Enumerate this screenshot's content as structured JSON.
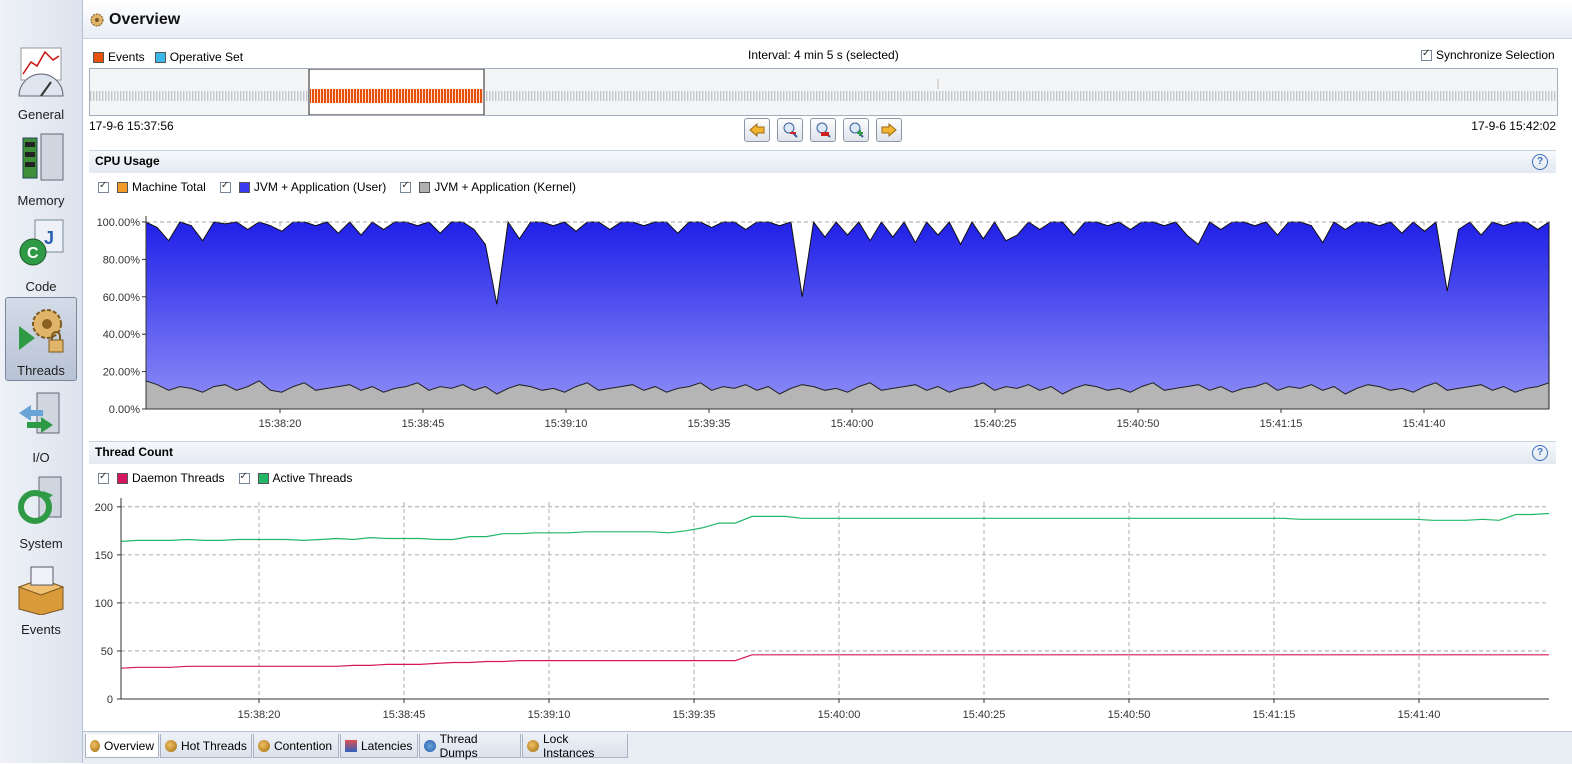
{
  "sidebar": {
    "items": [
      {
        "label": "General",
        "icon": "general-gauge-icon"
      },
      {
        "label": "Memory",
        "icon": "memory-chip-icon"
      },
      {
        "label": "Code",
        "icon": "code-icon"
      },
      {
        "label": "Threads",
        "icon": "threads-gears-icon",
        "active": true
      },
      {
        "label": "I/O",
        "icon": "io-icon"
      },
      {
        "label": "System",
        "icon": "system-icon"
      },
      {
        "label": "Events",
        "icon": "events-box-icon"
      }
    ]
  },
  "header": {
    "title": "Overview"
  },
  "timeline": {
    "legend": [
      {
        "label": "Events",
        "color": "#e8520c"
      },
      {
        "label": "Operative Set",
        "color": "#3bb7e8"
      }
    ],
    "interval_text": "Interval: 4 min 5 s (selected)",
    "sync_label": "Synchronize Selection",
    "start_time": "17-9-6 15:37:56",
    "end_time": "17-9-6 15:42:02",
    "buttons": [
      "back-arrow-icon",
      "zoom-out-icon",
      "zoom-selection-icon",
      "zoom-in-icon",
      "forward-arrow-icon"
    ]
  },
  "cpu": {
    "title": "CPU Usage",
    "legend": [
      {
        "label": "Machine Total",
        "color": "#f39a2b"
      },
      {
        "label": "JVM + Application (User)",
        "color": "#3a3af0"
      },
      {
        "label": "JVM + Application (Kernel)",
        "color": "#b0b0b0"
      }
    ],
    "y_ticks": [
      "0.00%",
      "20.00%",
      "40.00%",
      "60.00%",
      "80.00%",
      "100.00%"
    ],
    "x_ticks": [
      "15:38:20",
      "15:38:45",
      "15:39:10",
      "15:39:35",
      "15:40:00",
      "15:40:25",
      "15:40:50",
      "15:41:15",
      "15:41:40"
    ]
  },
  "threads": {
    "title": "Thread Count",
    "legend": [
      {
        "label": "Daemon Threads",
        "color": "#d6165e"
      },
      {
        "label": "Active Threads",
        "color": "#22b866"
      }
    ],
    "y_ticks": [
      "0",
      "50",
      "100",
      "150",
      "200"
    ],
    "x_ticks": [
      "15:38:20",
      "15:38:45",
      "15:39:10",
      "15:39:35",
      "15:40:00",
      "15:40:25",
      "15:40:50",
      "15:41:15",
      "15:41:40"
    ]
  },
  "tabs": [
    "Overview",
    "Hot Threads",
    "Contention",
    "Latencies",
    "Thread Dumps",
    "Lock Instances"
  ],
  "chart_data": [
    {
      "type": "area",
      "title": "CPU Usage",
      "ylabel": "",
      "ylim": [
        0,
        100
      ],
      "x_range": [
        "15:37:56",
        "15:42:02"
      ],
      "series": [
        {
          "name": "Machine Total",
          "values": [
            100,
            97,
            88,
            100,
            98,
            86,
            100,
            99,
            100,
            96,
            100,
            98,
            94,
            100,
            100,
            98,
            100,
            93,
            100,
            92,
            100,
            96,
            100,
            100,
            98,
            100,
            94,
            100,
            100,
            96,
            87,
            55,
            100,
            90,
            100,
            100,
            98,
            100,
            95,
            100,
            100,
            96,
            100,
            100,
            98,
            100,
            100,
            94,
            100,
            100,
            97,
            100,
            100,
            96,
            100,
            100,
            98,
            100,
            48,
            100,
            90,
            100,
            92,
            100,
            88,
            100,
            90,
            100,
            87,
            100,
            92,
            100,
            86,
            100,
            90,
            100,
            88,
            92,
            100,
            96,
            100,
            100,
            92,
            100,
            100,
            98,
            100,
            96,
            100,
            100,
            98,
            100,
            92,
            85,
            100,
            96,
            100,
            100,
            98,
            100,
            92,
            100,
            100,
            98,
            88,
            100,
            96,
            100,
            100,
            98,
            100,
            94,
            100,
            95,
            100,
            62,
            95,
            100,
            92,
            100,
            98,
            100,
            100,
            96,
            100
          ]
        },
        {
          "name": "JVM + Application (User)",
          "values": [
            100,
            97,
            90,
            100,
            98,
            90,
            100,
            99,
            100,
            96,
            100,
            98,
            95,
            100,
            100,
            98,
            100,
            94,
            100,
            93,
            100,
            96,
            100,
            100,
            98,
            100,
            94,
            100,
            100,
            96,
            88,
            56,
            100,
            91,
            100,
            100,
            98,
            100,
            95,
            100,
            100,
            96,
            100,
            100,
            98,
            100,
            100,
            94,
            100,
            100,
            97,
            100,
            100,
            96,
            100,
            100,
            98,
            100,
            60,
            100,
            92,
            100,
            93,
            100,
            90,
            100,
            92,
            100,
            89,
            100,
            93,
            100,
            88,
            100,
            91,
            100,
            90,
            93,
            100,
            96,
            100,
            100,
            93,
            100,
            100,
            98,
            100,
            96,
            100,
            100,
            98,
            100,
            93,
            88,
            100,
            96,
            100,
            100,
            98,
            100,
            93,
            100,
            100,
            98,
            89,
            100,
            96,
            100,
            100,
            98,
            100,
            94,
            100,
            95,
            100,
            63,
            96,
            100,
            93,
            100,
            98,
            100,
            100,
            96,
            100
          ]
        },
        {
          "name": "JVM + Application (Kernel)",
          "values": [
            15,
            13,
            10,
            12,
            11,
            9,
            12,
            13,
            10,
            12,
            15,
            10,
            9,
            12,
            14,
            10,
            11,
            12,
            13,
            10,
            12,
            9,
            11,
            12,
            14,
            10,
            12,
            11,
            13,
            10,
            12,
            8,
            11,
            13,
            12,
            10,
            11,
            9,
            12,
            14,
            10,
            11,
            12,
            13,
            10,
            12,
            9,
            11,
            12,
            14,
            10,
            12,
            11,
            13,
            10,
            12,
            8,
            11,
            13,
            12,
            10,
            11,
            9,
            12,
            14,
            10,
            11,
            12,
            13,
            10,
            12,
            9,
            11,
            12,
            14,
            10,
            12,
            11,
            13,
            10,
            12,
            8,
            11,
            13,
            12,
            10,
            11,
            9,
            12,
            14,
            10,
            11,
            12,
            13,
            10,
            12,
            9,
            11,
            12,
            14,
            10,
            12,
            11,
            13,
            10,
            12,
            8,
            11,
            13,
            12,
            10,
            11,
            9,
            12,
            14,
            10,
            11,
            12,
            13,
            10,
            12,
            9,
            11,
            12,
            14
          ]
        }
      ]
    },
    {
      "type": "line",
      "title": "Thread Count",
      "ylabel": "",
      "ylim": [
        0,
        200
      ],
      "x_range": [
        "15:37:56",
        "15:42:02"
      ],
      "series": [
        {
          "name": "Active Threads",
          "values": [
            164,
            165,
            165,
            165,
            166,
            165,
            165,
            166,
            166,
            166,
            166,
            165,
            166,
            167,
            166,
            168,
            167,
            167,
            167,
            166,
            166,
            169,
            169,
            172,
            172,
            173,
            173,
            173,
            174,
            174,
            174,
            174,
            174,
            173,
            175,
            178,
            183,
            183,
            190,
            190,
            190,
            188,
            188,
            188,
            188,
            188,
            188,
            188,
            188,
            188,
            188,
            188,
            188,
            188,
            188,
            188,
            188,
            188,
            188,
            188,
            188,
            188,
            188,
            188,
            188,
            188,
            188,
            188,
            188,
            188,
            188,
            187,
            187,
            187,
            187,
            187,
            187,
            187,
            187,
            186,
            186,
            186,
            187,
            186,
            192,
            192,
            193
          ]
        },
        {
          "name": "Daemon Threads",
          "values": [
            32,
            33,
            33,
            33,
            34,
            34,
            34,
            34,
            34,
            34,
            34,
            34,
            34,
            34,
            35,
            35,
            36,
            36,
            36,
            37,
            38,
            38,
            39,
            39,
            40,
            40,
            40,
            40,
            40,
            40,
            40,
            40,
            40,
            40,
            40,
            40,
            40,
            40,
            46,
            46,
            46,
            46,
            46,
            46,
            46,
            46,
            46,
            46,
            46,
            46,
            46,
            46,
            46,
            46,
            46,
            46,
            46,
            46,
            46,
            46,
            46,
            46,
            46,
            46,
            46,
            46,
            46,
            46,
            46,
            46,
            46,
            46,
            46,
            46,
            46,
            46,
            46,
            46,
            46,
            46,
            46,
            46,
            46,
            46,
            46,
            46,
            46
          ]
        }
      ]
    }
  ]
}
